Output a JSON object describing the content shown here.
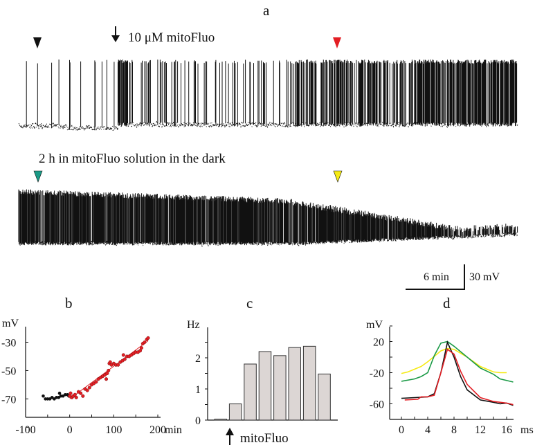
{
  "panel_a": {
    "label": "a",
    "annotation_top": "10 μM mitoFluo",
    "annotation_bottom": "2 h in mitoFluo solution in the dark",
    "markers": {
      "top_left": "#111111",
      "top_right": "#e31e24",
      "bottom_left": "#1a9a86",
      "bottom_right": "#f5ea14"
    },
    "scale_bar": {
      "time": "6 min",
      "voltage": "30 mV"
    }
  },
  "chart_data": [
    {
      "panel": "b",
      "type": "scatter",
      "xlabel": "min",
      "ylabel": "mV",
      "xlim": [
        -100,
        200
      ],
      "ylim": [
        -83,
        -19
      ],
      "xticks": [
        "-100",
        "0",
        "100",
        "200"
      ],
      "yticks": [
        "-30",
        "-50",
        "-70"
      ],
      "grid": false,
      "series": [
        {
          "color": "#111111",
          "points": [
            [
              -60,
              -68
            ],
            [
              -55,
              -70
            ],
            [
              -50,
              -70
            ],
            [
              -45,
              -70
            ],
            [
              -40,
              -69
            ],
            [
              -35,
              -70
            ],
            [
              -30,
              -69
            ],
            [
              -25,
              -69
            ],
            [
              -23,
              -66
            ],
            [
              -20,
              -68
            ],
            [
              -15,
              -68
            ],
            [
              -10,
              -67
            ],
            [
              -5,
              -67
            ],
            [
              -2,
              -68
            ]
          ]
        },
        {
          "color": "#e31e24",
          "points": [
            [
              0,
              -68
            ],
            [
              2,
              -66
            ],
            [
              5,
              -69
            ],
            [
              8,
              -68
            ],
            [
              12,
              -67
            ],
            [
              15,
              -69
            ],
            [
              20,
              -65
            ],
            [
              25,
              -66
            ],
            [
              30,
              -68
            ],
            [
              35,
              -63
            ],
            [
              40,
              -64
            ],
            [
              45,
              -62
            ],
            [
              50,
              -60
            ],
            [
              55,
              -59
            ],
            [
              60,
              -58
            ],
            [
              65,
              -56
            ],
            [
              70,
              -55
            ],
            [
              75,
              -54
            ],
            [
              80,
              -53
            ],
            [
              83,
              -56
            ],
            [
              85,
              -52
            ],
            [
              88,
              -50
            ],
            [
              90,
              -45
            ],
            [
              92,
              -44
            ],
            [
              95,
              -46
            ],
            [
              100,
              -45
            ],
            [
              105,
              -46
            ],
            [
              110,
              -46
            ],
            [
              115,
              -44
            ],
            [
              120,
              -43
            ],
            [
              122,
              -39
            ],
            [
              125,
              -42
            ],
            [
              130,
              -40
            ],
            [
              135,
              -40
            ],
            [
              140,
              -39
            ],
            [
              145,
              -38
            ],
            [
              150,
              -37
            ],
            [
              155,
              -37
            ],
            [
              160,
              -36
            ],
            [
              163,
              -34
            ],
            [
              166,
              -31
            ],
            [
              170,
              -30
            ],
            [
              175,
              -28
            ],
            [
              178,
              -27
            ]
          ],
          "fit": [
            [
              0,
              -70
            ],
            [
              178,
              -29
            ]
          ]
        }
      ]
    },
    {
      "panel": "c",
      "type": "bar",
      "ylabel": "Hz",
      "ylim": [
        0,
        3
      ],
      "yticks": [
        "0",
        "1",
        "2"
      ],
      "values": [
        0.03,
        0.52,
        1.8,
        2.2,
        2.07,
        2.33,
        2.37,
        1.48
      ],
      "bar_color": "#dcd6d4",
      "annotation": "mitoFluo",
      "grid": false
    },
    {
      "panel": "d",
      "type": "line",
      "xlabel": "ms",
      "ylabel": "mV",
      "xlim": [
        -2,
        17
      ],
      "ylim": [
        -80,
        40
      ],
      "xticks": [
        "0",
        "4",
        "8",
        "12",
        "16"
      ],
      "yticks": [
        "20",
        "-20",
        "-60"
      ],
      "grid": false,
      "series": [
        {
          "color": "#f5ea14",
          "x": [
            0,
            1,
            3,
            4,
            6,
            7,
            8,
            10,
            12,
            14,
            15,
            16
          ],
          "y": [
            -21,
            -19,
            -12,
            -6,
            8,
            11,
            10,
            0,
            -12,
            -19,
            -20,
            -20
          ]
        },
        {
          "color": "#1a9a46",
          "x": [
            0,
            2,
            3,
            4,
            5,
            6,
            7,
            8,
            10,
            12,
            14,
            15,
            17
          ],
          "y": [
            -31,
            -28,
            -25,
            -20,
            2,
            18,
            20,
            14,
            0,
            -14,
            -22,
            -28,
            -32
          ]
        },
        {
          "color": "#111111",
          "x": [
            0,
            2,
            4,
            5,
            6,
            7,
            8,
            9,
            10,
            12,
            14,
            15,
            16,
            17
          ],
          "y": [
            -53,
            -52,
            -51,
            -47,
            -20,
            19,
            0,
            -25,
            -42,
            -55,
            -58,
            -60,
            -59,
            -62
          ]
        },
        {
          "color": "#e31e24",
          "x": [
            0.5,
            2.5,
            3,
            4,
            5,
            6,
            7,
            8,
            9,
            10,
            12,
            14,
            16,
            17
          ],
          "y": [
            -55,
            -54,
            -51,
            -51,
            -49,
            -20,
            10,
            4,
            -18,
            -35,
            -52,
            -57,
            -59,
            -61
          ]
        }
      ]
    }
  ]
}
